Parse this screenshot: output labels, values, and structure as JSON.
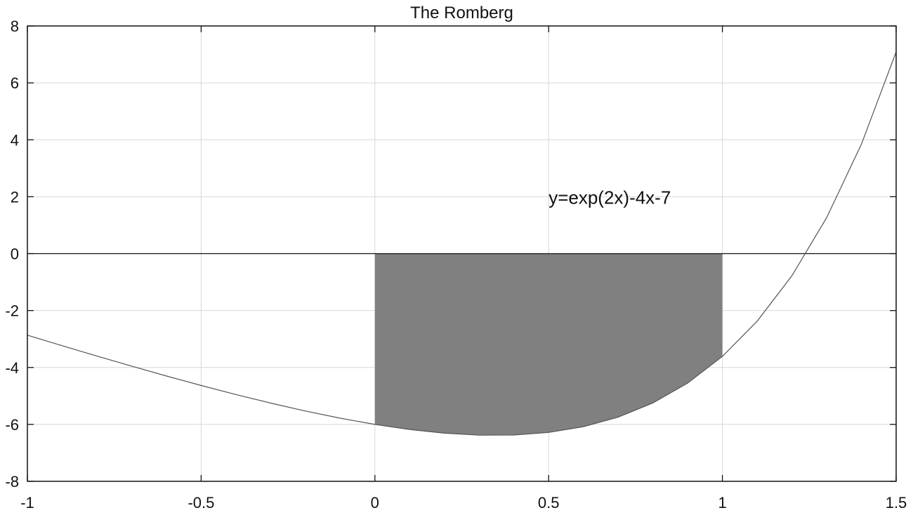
{
  "chart_data": {
    "type": "line",
    "title": "The Romberg",
    "xlabel": "",
    "ylabel": "",
    "xlim": [
      -1,
      1.5
    ],
    "ylim": [
      -8,
      8
    ],
    "grid": true,
    "x_ticks": [
      -1,
      -0.5,
      0,
      0.5,
      1,
      1.5
    ],
    "x_tick_labels": [
      "-1",
      "-0.5",
      "0",
      "0.5",
      "1",
      "1.5"
    ],
    "y_ticks": [
      -8,
      -6,
      -4,
      -2,
      0,
      2,
      4,
      6,
      8
    ],
    "y_tick_labels": [
      "-8",
      "-6",
      "-4",
      "-2",
      "0",
      "2",
      "4",
      "6",
      "8"
    ],
    "series": [
      {
        "function": "y=exp(2x)-4x-7",
        "x": [
          -1,
          -0.9,
          -0.8,
          -0.7,
          -0.6,
          -0.5,
          -0.4,
          -0.3,
          -0.2,
          -0.1,
          0,
          0.1,
          0.2,
          0.3,
          0.4,
          0.5,
          0.6,
          0.7,
          0.8,
          0.9,
          1,
          1.1,
          1.2,
          1.3,
          1.4,
          1.5
        ],
        "y": [
          -2.865,
          -3.235,
          -3.598,
          -3.953,
          -4.299,
          -4.632,
          -4.951,
          -5.251,
          -5.53,
          -5.781,
          -6.0,
          -6.179,
          -6.308,
          -6.378,
          -6.374,
          -6.282,
          -6.08,
          -5.745,
          -5.247,
          -4.55,
          -3.611,
          -2.374,
          -0.777,
          1.264,
          3.845,
          7.086
        ],
        "color": "#555555"
      }
    ],
    "shaded_region": {
      "x_from": 0,
      "x_to": 1,
      "between": "curve and y=0",
      "color": "#808080"
    },
    "annotations": [
      {
        "text": "y=exp(2x)-4x-7",
        "x": 0.5,
        "y": 2
      }
    ]
  }
}
